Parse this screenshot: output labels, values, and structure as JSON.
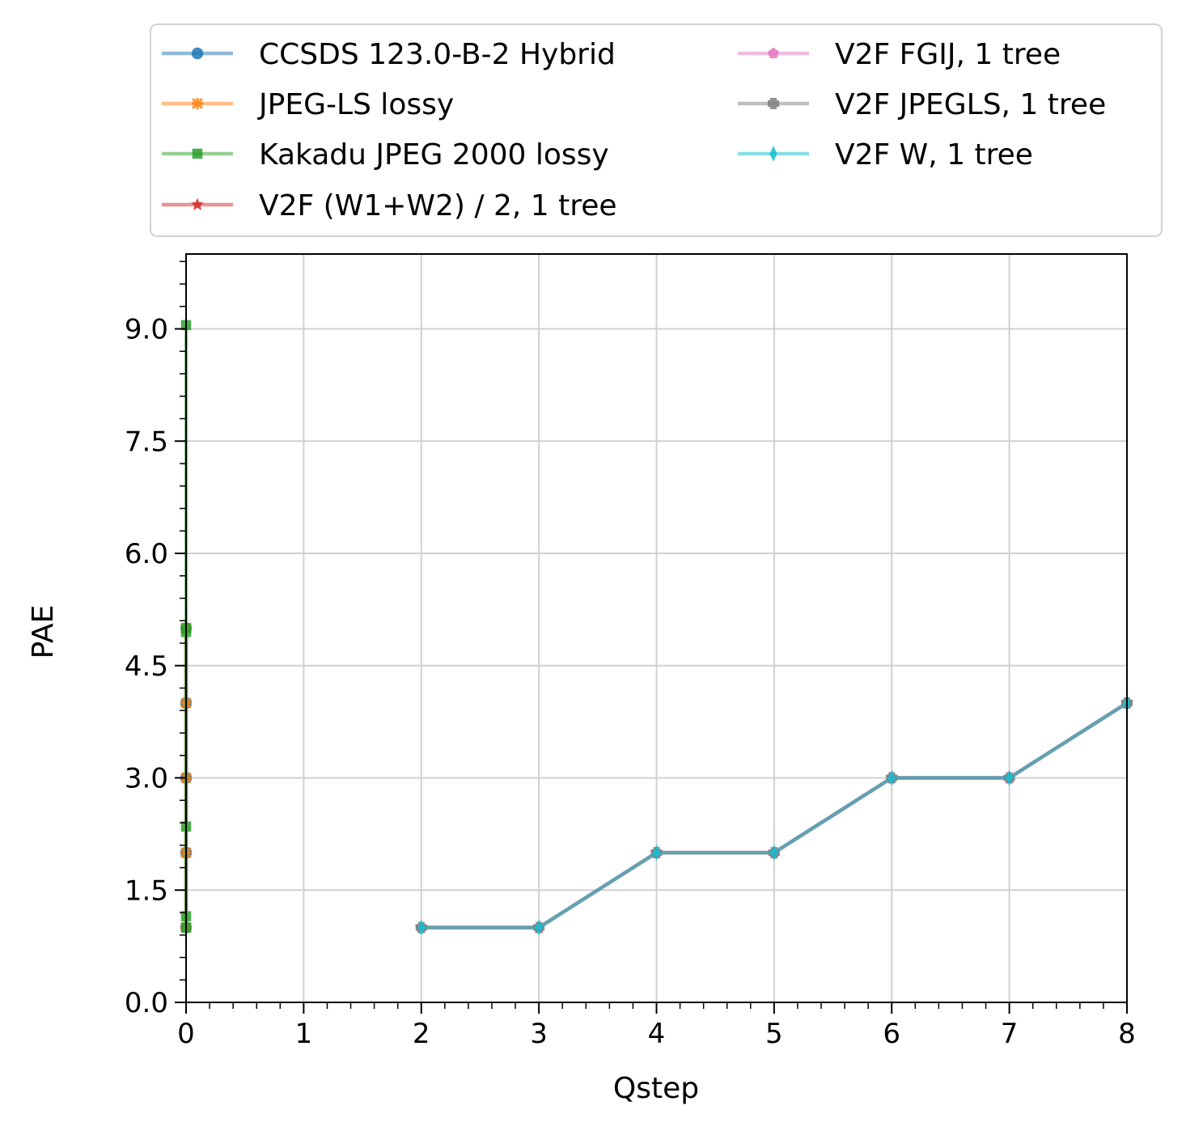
{
  "chart_data": {
    "type": "line",
    "xlabel": "Qstep",
    "ylabel": "PAE",
    "xlim": [
      0,
      8
    ],
    "ylim": [
      0,
      10
    ],
    "x_ticks": [
      0,
      1,
      2,
      3,
      4,
      5,
      6,
      7,
      8
    ],
    "x_tick_labels": [
      "0",
      "1",
      "2",
      "3",
      "4",
      "5",
      "6",
      "7",
      "8"
    ],
    "y_ticks": [
      0,
      1.5,
      3,
      4.5,
      6,
      7.5,
      9
    ],
    "y_tick_labels": [
      "0.0",
      "1.5",
      "3.0",
      "4.5",
      "6.0",
      "7.5",
      "9.0"
    ],
    "grid": true,
    "legend_position": "top, above plot, two columns",
    "series": [
      {
        "name": "CCSDS 123.0-B-2 Hybrid",
        "color": "#1f77b4",
        "marker": "circle",
        "x": [
          0,
          0,
          0,
          0,
          0
        ],
        "y": [
          1,
          2,
          3,
          4,
          5
        ]
      },
      {
        "name": "JPEG-LS lossy",
        "color": "#ff7f0e",
        "marker": "x",
        "x": [
          0,
          0,
          0,
          0,
          0
        ],
        "y": [
          1,
          2,
          3,
          4,
          5
        ]
      },
      {
        "name": "Kakadu JPEG 2000 lossy",
        "color": "#2ca02c",
        "marker": "square",
        "x": [
          0,
          0,
          0,
          0,
          0,
          0
        ],
        "y": [
          1.0,
          1.15,
          2.35,
          4.95,
          5.0,
          9.05
        ]
      },
      {
        "name": "V2F (W1+W2) / 2, 1 tree",
        "color": "#d62728",
        "marker": "star",
        "x": [
          2,
          3,
          4,
          5,
          6,
          7,
          8
        ],
        "y": [
          1,
          1,
          2,
          2,
          3,
          3,
          4
        ]
      },
      {
        "name": "V2F FGIJ, 1 tree",
        "color": "#e377c2",
        "marker": "pentagon",
        "x": [
          2,
          3,
          4,
          5,
          6,
          7,
          8
        ],
        "y": [
          1,
          1,
          2,
          2,
          3,
          3,
          4
        ]
      },
      {
        "name": "V2F JPEGLS, 1 tree",
        "color": "#7f7f7f",
        "marker": "plus",
        "x": [
          2,
          3,
          4,
          5,
          6,
          7,
          8
        ],
        "y": [
          1,
          1,
          2,
          2,
          3,
          3,
          4
        ]
      },
      {
        "name": "V2F W, 1 tree",
        "color": "#17becf",
        "marker": "thin-diamond",
        "x": [
          2,
          3,
          4,
          5,
          6,
          7,
          8
        ],
        "y": [
          1,
          1,
          2,
          2,
          3,
          3,
          4
        ]
      }
    ]
  }
}
